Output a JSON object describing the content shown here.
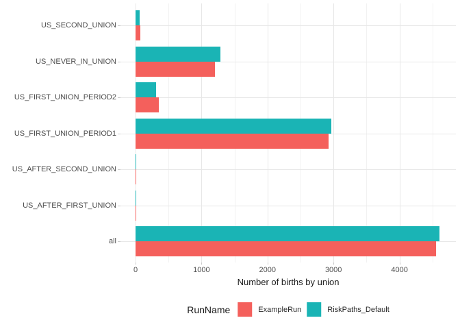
{
  "chart_data": {
    "type": "bar",
    "orientation": "horizontal",
    "title": "",
    "xlabel": "Number of births by union",
    "ylabel": "",
    "categories_top_to_bottom": [
      "US_SECOND_UNION",
      "US_NEVER_IN_UNION",
      "US_FIRST_UNION_PERIOD2",
      "US_FIRST_UNION_PERIOD1",
      "US_AFTER_SECOND_UNION",
      "US_AFTER_FIRST_UNION",
      "all"
    ],
    "series": [
      {
        "name": "RiskPaths_Default",
        "color": "#1AB4B5",
        "values": [
          60,
          1285,
          310,
          2970,
          15,
          15,
          4605
        ]
      },
      {
        "name": "ExampleRun",
        "color": "#F4605C",
        "values": [
          75,
          1205,
          350,
          2930,
          15,
          15,
          4550
        ]
      }
    ],
    "x_ticks": [
      0,
      1000,
      2000,
      3000,
      4000
    ],
    "x_minor_ticks": [
      500,
      1500,
      2500,
      3500,
      4500
    ],
    "xlim": [
      0,
      4850
    ],
    "grid": true,
    "legend": {
      "title": "RunName",
      "position": "bottom",
      "entries": [
        "ExampleRun",
        "RiskPaths_Default"
      ]
    }
  },
  "colors": {
    "background": "#FFFFFF",
    "grid_major": "#E7E7E7",
    "grid_minor": "#F2F2F2",
    "tick_mark": "#C9C9C9",
    "axis_text": "#4D4D4D",
    "title_text": "#1A1A1A"
  }
}
